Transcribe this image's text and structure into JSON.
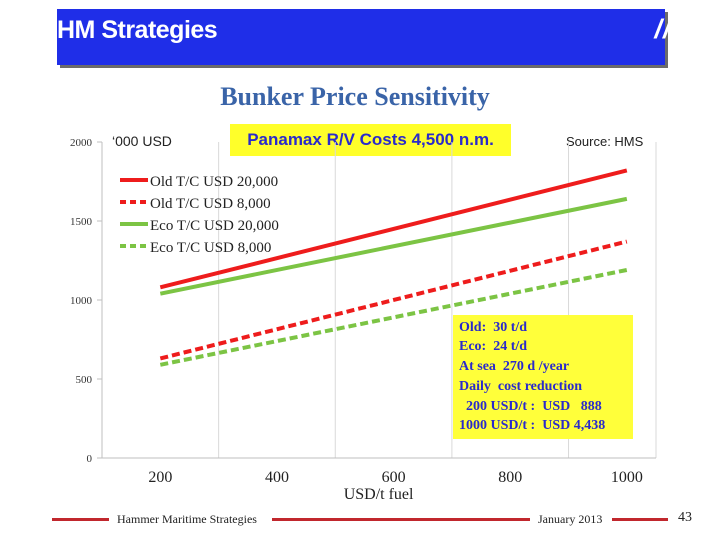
{
  "header": {
    "title": "HM Strategies",
    "mark": "///"
  },
  "colors": {
    "header_bg": "#1f2ee8",
    "old_series": "#ee1c1c",
    "eco_series": "#7cc444",
    "title": "#3a64a8",
    "highlight": "#ffff2a",
    "highlight_text": "#2a2acc",
    "footer_rule": "#c1272d"
  },
  "chart_data": {
    "type": "line",
    "title": "Bunker Price Sensitivity",
    "subtitle": "Panamax R/V Costs 4,500 n.m.",
    "unit_label": "‘000 USD",
    "source_prefix": "Source: ",
    "source": "HMS",
    "xlabel": "USD/t fuel",
    "ylabel": "",
    "xlim": [
      100,
      1050
    ],
    "ylim": [
      0,
      2000
    ],
    "x_ticks": [
      200,
      400,
      600,
      800,
      1000
    ],
    "x_tick_labels": [
      "200",
      "400",
      "600",
      "800",
      "1000"
    ],
    "y_ticks": [
      0,
      500,
      1000,
      1500,
      2000
    ],
    "y_tick_labels": [
      "0",
      "500",
      "1000",
      "1500",
      "2000"
    ],
    "grid": "vertical",
    "legend_position": "top-left",
    "series": [
      {
        "name": "Old T/C USD 20,000",
        "style": "solid",
        "color": "#ee1c1c",
        "x": [
          200,
          1000
        ],
        "y": [
          1080,
          1820
        ]
      },
      {
        "name": "Old T/C USD 8,000",
        "style": "dashed",
        "color": "#ee1c1c",
        "x": [
          200,
          1000
        ],
        "y": [
          630,
          1370
        ]
      },
      {
        "name": "Eco T/C USD 20,000",
        "style": "solid",
        "color": "#7cc444",
        "x": [
          200,
          1000
        ],
        "y": [
          1040,
          1640
        ]
      },
      {
        "name": "Eco T/C USD 8,000",
        "style": "dashed",
        "color": "#7cc444",
        "x": [
          200,
          1000
        ],
        "y": [
          590,
          1190
        ]
      }
    ],
    "annotation": [
      "Old:  30 t/d",
      "Eco:  24 t/d",
      "At sea  270 d /year",
      "Daily  cost reduction",
      "  200 USD/t :  USD   888",
      "1000 USD/t :  USD 4,438"
    ]
  },
  "footer": {
    "left": "Hammer Maritime Strategies",
    "right": "January 2013",
    "page": "43"
  }
}
